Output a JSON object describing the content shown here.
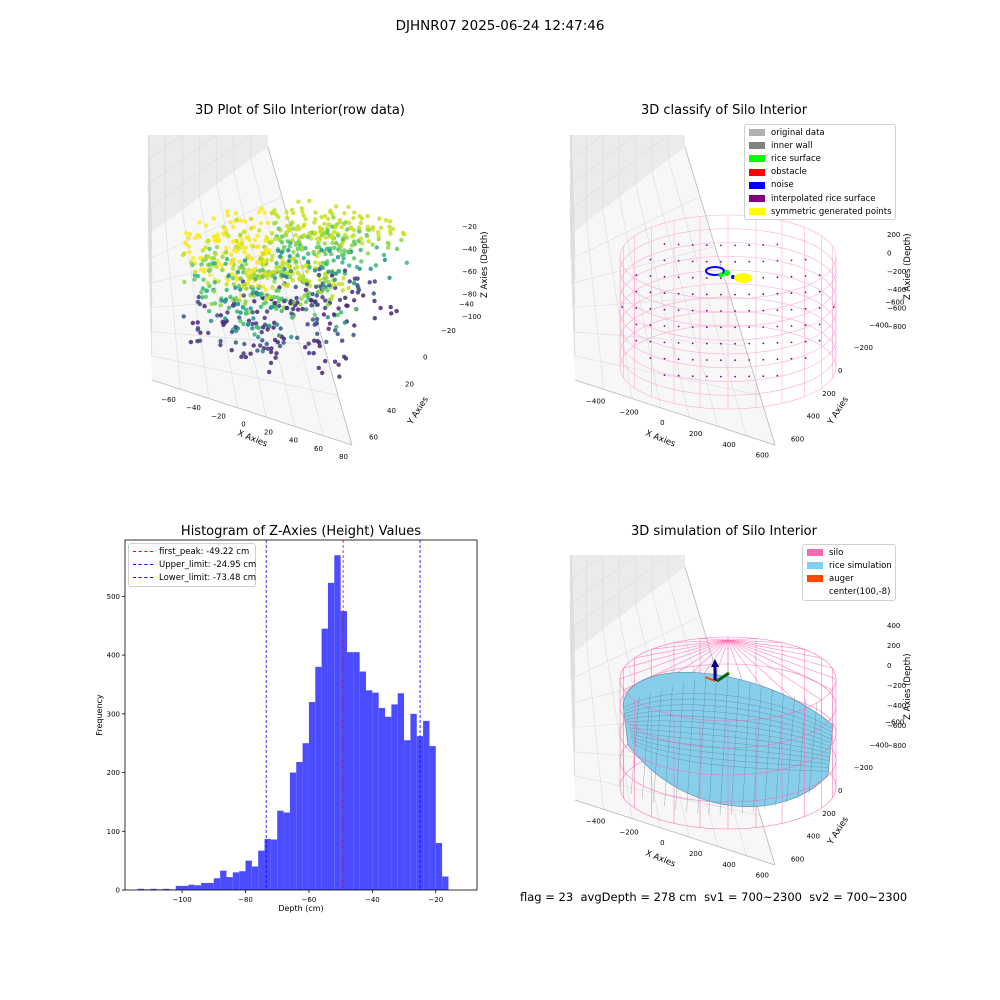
{
  "suptitle": "DJHNR07 2025-06-24 12:47:46",
  "chart_data": [
    {
      "type": "scatter",
      "title": "3D Plot of Silo Interior(row data)",
      "xlabel": "X Axies",
      "ylabel": "Y Axies",
      "zlabel": "Z Axies (Depth)",
      "x_ticks": [
        "−60",
        "−40",
        "−20",
        "0",
        "20",
        "40",
        "60",
        "80"
      ],
      "y_ticks": [
        "−40",
        "−20",
        "0",
        "20",
        "40",
        "60"
      ],
      "z_ticks": [
        "−20",
        "−40",
        "−60",
        "−80",
        "−100"
      ]
    },
    {
      "type": "scatter",
      "title": "3D classify of Silo Interior",
      "xlabel": "X Axies",
      "ylabel": "Y Axies",
      "zlabel": "Z Axies (Depth)",
      "x_ticks": [
        "−400",
        "−200",
        "0",
        "200",
        "400",
        "600"
      ],
      "y_ticks": [
        "−600",
        "−400",
        "−200",
        "0",
        "200",
        "400",
        "600"
      ],
      "z_ticks": [
        "200",
        "0",
        "−200",
        "−400",
        "−600",
        "−800"
      ],
      "legend": [
        {
          "label": "original data",
          "color": "#b0b0b0"
        },
        {
          "label": "inner wall",
          "color": "#808080"
        },
        {
          "label": "rice surface",
          "color": "#00ff00"
        },
        {
          "label": "obstacle",
          "color": "#ff0000"
        },
        {
          "label": "noise",
          "color": "#0000ff"
        },
        {
          "label": "interpolated rice surface",
          "color": "#800080"
        },
        {
          "label": "symmetric generated points",
          "color": "#ffff00"
        }
      ]
    },
    {
      "type": "bar",
      "title": "Histogram of Z-Axies (Height) Values",
      "xlabel": "Depth (cm)",
      "ylabel": "Frequency",
      "xlim": [
        -118,
        -7
      ],
      "ylim": [
        0,
        596
      ],
      "x_ticks": [
        -100,
        -80,
        -60,
        -40,
        -20
      ],
      "y_ticks": [
        0,
        100,
        200,
        300,
        400,
        500
      ],
      "bin_start": -114,
      "bin_width": 2,
      "values": [
        2,
        1,
        2,
        1,
        2,
        1,
        7,
        7,
        9,
        8,
        12,
        12,
        20,
        33,
        22,
        30,
        32,
        50,
        40,
        67,
        87,
        86,
        135,
        132,
        200,
        218,
        250,
        320,
        380,
        445,
        523,
        570,
        475,
        405,
        405,
        372,
        340,
        336,
        310,
        295,
        316,
        335,
        255,
        300,
        262,
        288,
        245,
        80,
        23
      ],
      "bar_color": "#4c4cff",
      "vlines": [
        {
          "label": "first_peak: -49.22 cm",
          "x": -49.22,
          "color": "#ff0000"
        },
        {
          "label": "Upper_limit: -24.95 cm",
          "x": -24.95,
          "color": "#0000ff"
        },
        {
          "label": "Lower_limit: -73.48 cm",
          "x": -73.48,
          "color": "#0000ff"
        }
      ]
    },
    {
      "type": "surface",
      "title": "3D simulation of Silo Interior",
      "xlabel": "X Axies",
      "ylabel": "Y Axies",
      "zlabel": "Z Axies (Depth)",
      "x_ticks": [
        "−400",
        "−200",
        "0",
        "200",
        "400",
        "600"
      ],
      "y_ticks": [
        "−600",
        "−400",
        "−200",
        "0",
        "200",
        "400",
        "600"
      ],
      "z_ticks": [
        "400",
        "200",
        "0",
        "−200",
        "−400",
        "−600",
        "−800"
      ],
      "legend": [
        {
          "label": "silo",
          "color": "#ff69b4"
        },
        {
          "label": "rice simulation",
          "color": "#87ceeb"
        },
        {
          "label": "auger",
          "color": "#ff4500"
        },
        {
          "label": "center(100,-8)",
          "color": "none"
        }
      ]
    }
  ],
  "footer": {
    "flag": "flag = 23",
    "avg_depth": "avgDepth = 278 cm",
    "sv1": "sv1 = 700~2300",
    "sv2": "sv2 = 700~2300"
  }
}
